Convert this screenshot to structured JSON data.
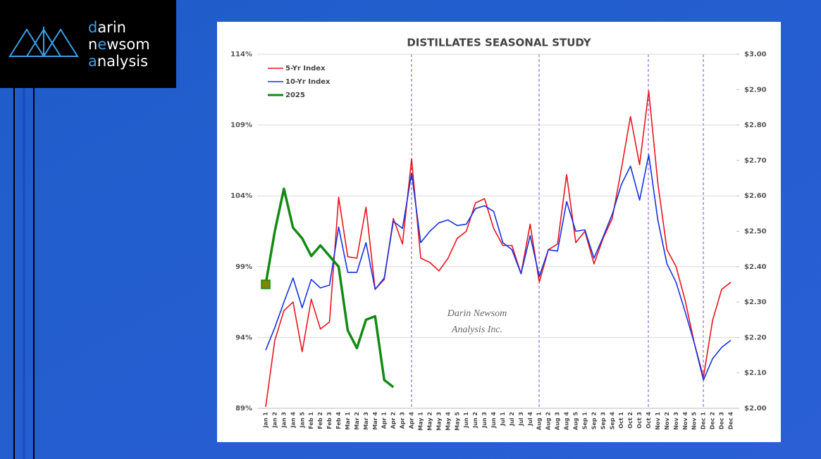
{
  "logo": {
    "lines": [
      [
        "d",
        "arin"
      ],
      [
        "n",
        "e",
        "wsom"
      ],
      [
        "a",
        "nalysis"
      ]
    ]
  },
  "chart_data": {
    "type": "line",
    "title": "DISTILLATES SEASONAL STUDY",
    "annotation": [
      "Darin Newsom",
      "Analysis Inc."
    ],
    "categories": [
      "Jan 1",
      "Jan 2",
      "Jan 3",
      "Jan 4",
      "Jan 5",
      "Feb 1",
      "Feb 2",
      "Feb 3",
      "Feb 4",
      "Mar 1",
      "Mar 2",
      "Mar 3",
      "Mar 4",
      "Apr 1",
      "Apr 2",
      "Apr 3",
      "Apr 4",
      "May 1",
      "May 2",
      "May 3",
      "May 4",
      "May 5",
      "Jun 1",
      "Jun 2",
      "Jun 3",
      "Jun 4",
      "Jul 1",
      "Jul 2",
      "Jul 3",
      "Jul 4",
      "Aug 1",
      "Aug 2",
      "Aug 3",
      "Aug 4",
      "Aug 5",
      "Sep 1",
      "Sep 2",
      "Sep 3",
      "Sep 4",
      "Oct 1",
      "Oct 2",
      "Oct 3",
      "Oct 4",
      "Nov 1",
      "Nov 2",
      "Nov 3",
      "Nov 4",
      "Nov 5",
      "Dec 1",
      "Dec 2",
      "Dec 3",
      "Dec 4"
    ],
    "series": [
      {
        "name": "5-Yr Index",
        "color": "#e8141c",
        "axis": "y",
        "values": [
          89.1,
          93.8,
          95.9,
          96.5,
          93.0,
          96.7,
          94.6,
          95.1,
          103.9,
          99.7,
          99.6,
          103.2,
          97.4,
          98.1,
          102.4,
          100.6,
          106.6,
          99.6,
          99.3,
          98.7,
          99.6,
          101.0,
          101.5,
          103.5,
          103.8,
          101.7,
          100.5,
          100.5,
          98.5,
          102.0,
          97.9,
          100.2,
          100.6,
          105.5,
          100.7,
          101.5,
          99.2,
          101.0,
          102.4,
          105.9,
          109.6,
          106.2,
          111.4,
          104.9,
          100.2,
          99.0,
          96.6,
          93.6,
          91.2,
          95.2,
          97.4,
          97.9
        ]
      },
      {
        "name": "10-Yr Index",
        "color": "#1432e0",
        "axis": "y",
        "values": [
          93.1,
          94.7,
          96.5,
          98.2,
          96.1,
          98.1,
          97.5,
          97.7,
          101.8,
          98.6,
          98.6,
          100.7,
          97.4,
          98.2,
          102.2,
          101.7,
          105.6,
          100.7,
          101.5,
          102.1,
          102.3,
          101.9,
          102.0,
          103.1,
          103.3,
          102.9,
          100.7,
          100.2,
          98.5,
          101.2,
          98.3,
          100.2,
          100.1,
          103.6,
          101.5,
          101.6,
          99.6,
          101.1,
          102.7,
          104.8,
          106.1,
          103.7,
          106.9,
          102.3,
          99.2,
          97.9,
          95.8,
          93.6,
          91.0,
          92.5,
          93.3,
          93.8
        ]
      },
      {
        "name": "2025",
        "color": "#138a13",
        "axis": "y2",
        "values": [
          2.35,
          2.5,
          2.62,
          2.51,
          2.48,
          2.43,
          2.46,
          2.43,
          2.4,
          2.22,
          2.17,
          2.25,
          2.26,
          2.08,
          2.06,
          null,
          null,
          null,
          null,
          null,
          null,
          null,
          null,
          null,
          null,
          null,
          null,
          null,
          null,
          null,
          null,
          null,
          null,
          null,
          null,
          null,
          null,
          null,
          null,
          null,
          null,
          null,
          null,
          null,
          null,
          null,
          null,
          null,
          null,
          null,
          null,
          null
        ]
      }
    ],
    "ylim": [
      89,
      114
    ],
    "yticks": [
      {
        "value": 89,
        "label": "89%"
      },
      {
        "value": 94,
        "label": "94%"
      },
      {
        "value": 99,
        "label": "99%"
      },
      {
        "value": 104,
        "label": "104%"
      },
      {
        "value": 109,
        "label": "109%"
      },
      {
        "value": 114,
        "label": "114%"
      }
    ],
    "y2lim": [
      2.0,
      3.0
    ],
    "y2ticks": [
      {
        "value": 2.0,
        "label": "$2.00"
      },
      {
        "value": 2.1,
        "label": "$2.10"
      },
      {
        "value": 2.2,
        "label": "$2.20"
      },
      {
        "value": 2.3,
        "label": "$2.30"
      },
      {
        "value": 2.4,
        "label": "$2.40"
      },
      {
        "value": 2.5,
        "label": "$2.50"
      },
      {
        "value": 2.6,
        "label": "$2.60"
      },
      {
        "value": 2.7,
        "label": "$2.70"
      },
      {
        "value": 2.8,
        "label": "$2.80"
      },
      {
        "value": 2.9,
        "label": "$2.90"
      },
      {
        "value": 3.0,
        "label": "$3.00"
      }
    ],
    "grid": true,
    "legend": "upper left"
  }
}
